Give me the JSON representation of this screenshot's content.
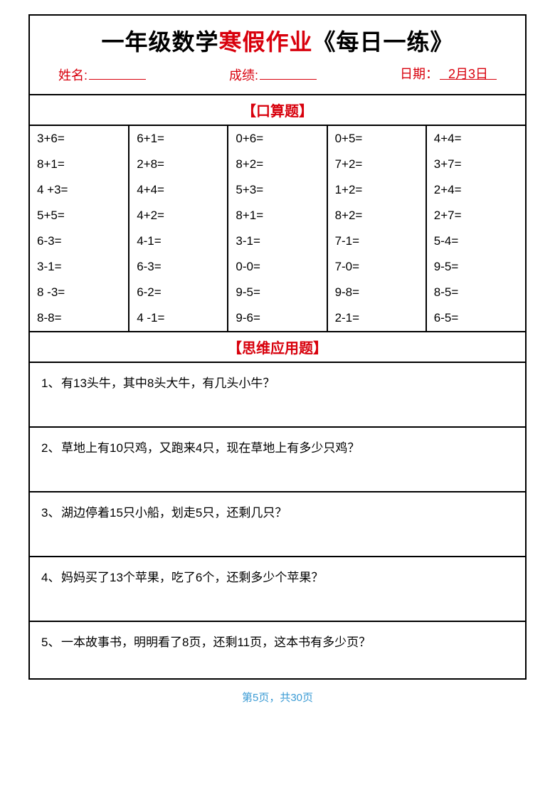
{
  "title": {
    "part1": "一年级数学",
    "part2_red": "寒假作业",
    "part3": "《每日一练》"
  },
  "info": {
    "name_label": "姓名:",
    "name_value": "",
    "score_label": "成绩:",
    "score_value": "",
    "date_label": "日期：",
    "date_value": "2月3日"
  },
  "section1_title": "【口算题】",
  "calc_rows": [
    [
      "3+6=",
      "6+1=",
      "0+6=",
      "0+5=",
      "4+4="
    ],
    [
      "8+1=",
      "2+8=",
      "8+2=",
      "7+2=",
      "3+7="
    ],
    [
      "4 +3=",
      "4+4=",
      "5+3=",
      "1+2=",
      "2+4="
    ],
    [
      "5+5=",
      "4+2=",
      "8+1=",
      "8+2=",
      "2+7="
    ],
    [
      "6-3=",
      "4-1=",
      "3-1=",
      "7-1=",
      "5-4="
    ],
    [
      "3-1=",
      "6-3=",
      "0-0=",
      "7-0=",
      "9-5="
    ],
    [
      "8 -3=",
      "6-2=",
      "9-5=",
      "9-8=",
      "8-5="
    ],
    [
      "8-8=",
      "4 -1=",
      "9-6=",
      "2-1=",
      "6-5="
    ]
  ],
  "section2_title": "【思维应用题】",
  "word_problems": [
    {
      "num": "1、",
      "text": "有13头牛，其中8头大牛，有几头小牛？"
    },
    {
      "num": "2、",
      "text": "草地上有10只鸡，又跑来4只，现在草地上有多少只鸡？"
    },
    {
      "num": "3、",
      "text": "湖边停着15只小船，划走5只，还剩几只？"
    },
    {
      "num": "4、",
      "text": "妈妈买了13个苹果，吃了6个，还剩多少个苹果？"
    },
    {
      "num": "5、",
      "text": "一本故事书，明明看了8页，还剩11页，这本书有多少页？"
    }
  ],
  "footer": "第5页，共30页",
  "colors": {
    "accent": "#d8000c",
    "border": "#000000",
    "footer": "#3b9bd4",
    "background": "#ffffff"
  }
}
